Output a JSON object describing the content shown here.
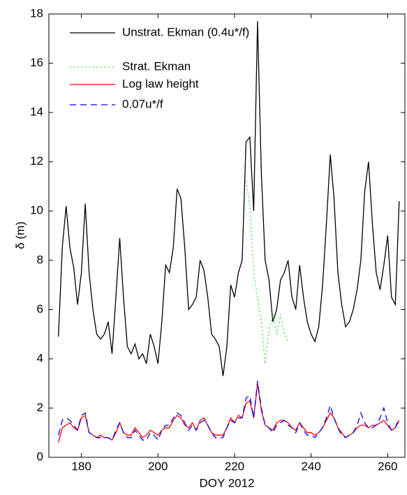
{
  "chart_data": {
    "type": "line",
    "xlabel": "DOY 2012",
    "ylabel": "δ (m)",
    "x": [
      174,
      175,
      176,
      177,
      178,
      179,
      180,
      181,
      182,
      183,
      184,
      185,
      186,
      187,
      188,
      189,
      190,
      191,
      192,
      193,
      194,
      195,
      196,
      197,
      198,
      199,
      200,
      201,
      202,
      203,
      204,
      205,
      206,
      207,
      208,
      209,
      210,
      211,
      212,
      213,
      214,
      215,
      216,
      217,
      218,
      219,
      220,
      221,
      222,
      223,
      224,
      225,
      226,
      227,
      228,
      229,
      230,
      231,
      232,
      233,
      234,
      235,
      236,
      237,
      238,
      239,
      240,
      241,
      242,
      243,
      244,
      245,
      246,
      247,
      248,
      249,
      250,
      251,
      252,
      253,
      254,
      255,
      256,
      257,
      258,
      259,
      260,
      261,
      262,
      263
    ],
    "series": [
      {
        "name": "Unstrat. Ekman (0.4u*/f)",
        "color": "#000000",
        "dash": "solid",
        "values": [
          4.9,
          8.5,
          10.2,
          8.5,
          7.7,
          6.2,
          7.5,
          10.3,
          7.5,
          6.0,
          5.0,
          4.8,
          5.0,
          5.5,
          4.2,
          6.5,
          8.9,
          6.5,
          4.5,
          4.2,
          4.6,
          4.0,
          4.2,
          3.8,
          5.0,
          4.5,
          3.8,
          5.5,
          7.8,
          7.5,
          8.5,
          10.9,
          10.5,
          8.5,
          6.0,
          6.2,
          6.5,
          8.0,
          7.6,
          6.5,
          5.0,
          4.8,
          4.5,
          3.3,
          4.5,
          7.0,
          6.5,
          7.5,
          8.0,
          12.8,
          13.0,
          10.0,
          17.7,
          11.5,
          8.0,
          7.2,
          5.5,
          6.0,
          7.2,
          7.5,
          8.0,
          6.5,
          6.0,
          7.8,
          6.5,
          5.5,
          5.0,
          4.7,
          5.3,
          7.0,
          9.5,
          12.3,
          10.5,
          7.5,
          6.2,
          5.3,
          5.5,
          6.0,
          6.8,
          8.0,
          10.8,
          12.0,
          9.5,
          7.5,
          6.8,
          7.8,
          9.0,
          6.5,
          6.2,
          10.4
        ]
      },
      {
        "name": "Strat. Ekman",
        "color": "#00dd00",
        "dash": "dotted",
        "values": [
          null,
          null,
          null,
          null,
          null,
          null,
          null,
          null,
          null,
          null,
          null,
          null,
          null,
          null,
          null,
          null,
          null,
          null,
          null,
          null,
          null,
          null,
          null,
          null,
          null,
          null,
          null,
          null,
          null,
          null,
          null,
          null,
          null,
          null,
          null,
          null,
          null,
          null,
          null,
          null,
          null,
          null,
          null,
          null,
          null,
          null,
          null,
          null,
          null,
          11.2,
          10.2,
          7.5,
          6.5,
          5.5,
          3.8,
          5.2,
          5.8,
          5.0,
          5.8,
          5.0,
          4.7,
          null,
          null,
          null,
          null,
          null,
          null,
          null,
          null,
          null,
          null,
          null,
          null,
          null,
          null,
          null,
          null,
          null,
          null,
          null,
          null,
          null,
          null,
          null,
          null,
          null,
          null,
          null,
          null,
          null
        ]
      },
      {
        "name": "Log law height",
        "color": "#ff0000",
        "dash": "solid",
        "values": [
          0.6,
          1.2,
          1.3,
          1.4,
          1.2,
          1.1,
          1.6,
          1.7,
          1.0,
          0.9,
          0.8,
          0.9,
          0.8,
          0.8,
          0.7,
          1.0,
          1.4,
          1.0,
          0.9,
          0.9,
          1.2,
          1.0,
          0.8,
          0.9,
          1.1,
          1.0,
          0.9,
          1.1,
          1.2,
          1.2,
          1.5,
          1.7,
          1.6,
          1.3,
          1.2,
          1.4,
          1.1,
          1.5,
          1.6,
          1.3,
          1.0,
          0.9,
          0.9,
          0.9,
          1.2,
          1.6,
          1.4,
          1.7,
          1.6,
          2.2,
          2.3,
          1.6,
          3.0,
          1.9,
          1.3,
          1.2,
          1.1,
          1.4,
          1.5,
          1.5,
          1.4,
          1.2,
          1.1,
          1.4,
          1.2,
          1.0,
          1.0,
          0.9,
          1.0,
          1.2,
          1.5,
          1.8,
          1.6,
          1.2,
          1.0,
          0.8,
          0.9,
          1.0,
          1.2,
          1.3,
          1.3,
          1.2,
          1.3,
          1.3,
          1.4,
          1.5,
          1.3,
          1.1,
          1.2,
          1.5
        ]
      },
      {
        "name": "0.07u*/f",
        "color": "#0000ff",
        "dash": "dashed",
        "values": [
          0.9,
          1.5,
          1.6,
          1.5,
          1.3,
          1.1,
          1.7,
          1.8,
          1.0,
          0.9,
          0.8,
          0.8,
          0.8,
          0.8,
          0.7,
          1.1,
          1.4,
          1.0,
          0.8,
          0.8,
          1.1,
          0.9,
          0.7,
          0.7,
          1.0,
          0.9,
          0.7,
          1.1,
          1.3,
          1.3,
          1.6,
          1.8,
          1.7,
          1.4,
          1.1,
          1.3,
          1.1,
          1.4,
          1.5,
          1.3,
          1.0,
          0.8,
          0.8,
          0.8,
          1.2,
          1.5,
          1.4,
          1.6,
          1.6,
          2.4,
          2.5,
          1.6,
          3.1,
          2.0,
          1.3,
          1.2,
          1.0,
          1.3,
          1.4,
          1.5,
          1.3,
          1.2,
          1.0,
          1.4,
          1.1,
          0.9,
          0.9,
          0.8,
          1.0,
          1.2,
          1.6,
          2.1,
          1.6,
          1.2,
          0.9,
          0.8,
          0.9,
          1.0,
          1.3,
          1.8,
          1.4,
          1.2,
          1.2,
          1.3,
          1.6,
          2.0,
          1.4,
          1.1,
          1.2,
          1.6
        ]
      }
    ],
    "xlim": [
      171.5,
      264.5
    ],
    "xticks": [
      180,
      200,
      220,
      240,
      260
    ],
    "ylim": [
      0,
      18
    ],
    "yticks": [
      0,
      2,
      4,
      6,
      8,
      10,
      12,
      14,
      16,
      18
    ],
    "legend": "top-left"
  }
}
